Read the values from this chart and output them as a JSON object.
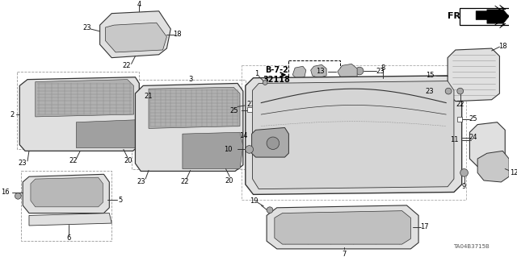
{
  "bg_color": "#ffffff",
  "line_color": "#333333",
  "gray_fill": "#c8c8c8",
  "light_gray": "#e0e0e0",
  "dark_gray": "#888888",
  "diagram_code": "TA04B3715B",
  "figsize": [
    6.4,
    3.19
  ],
  "dpi": 100
}
